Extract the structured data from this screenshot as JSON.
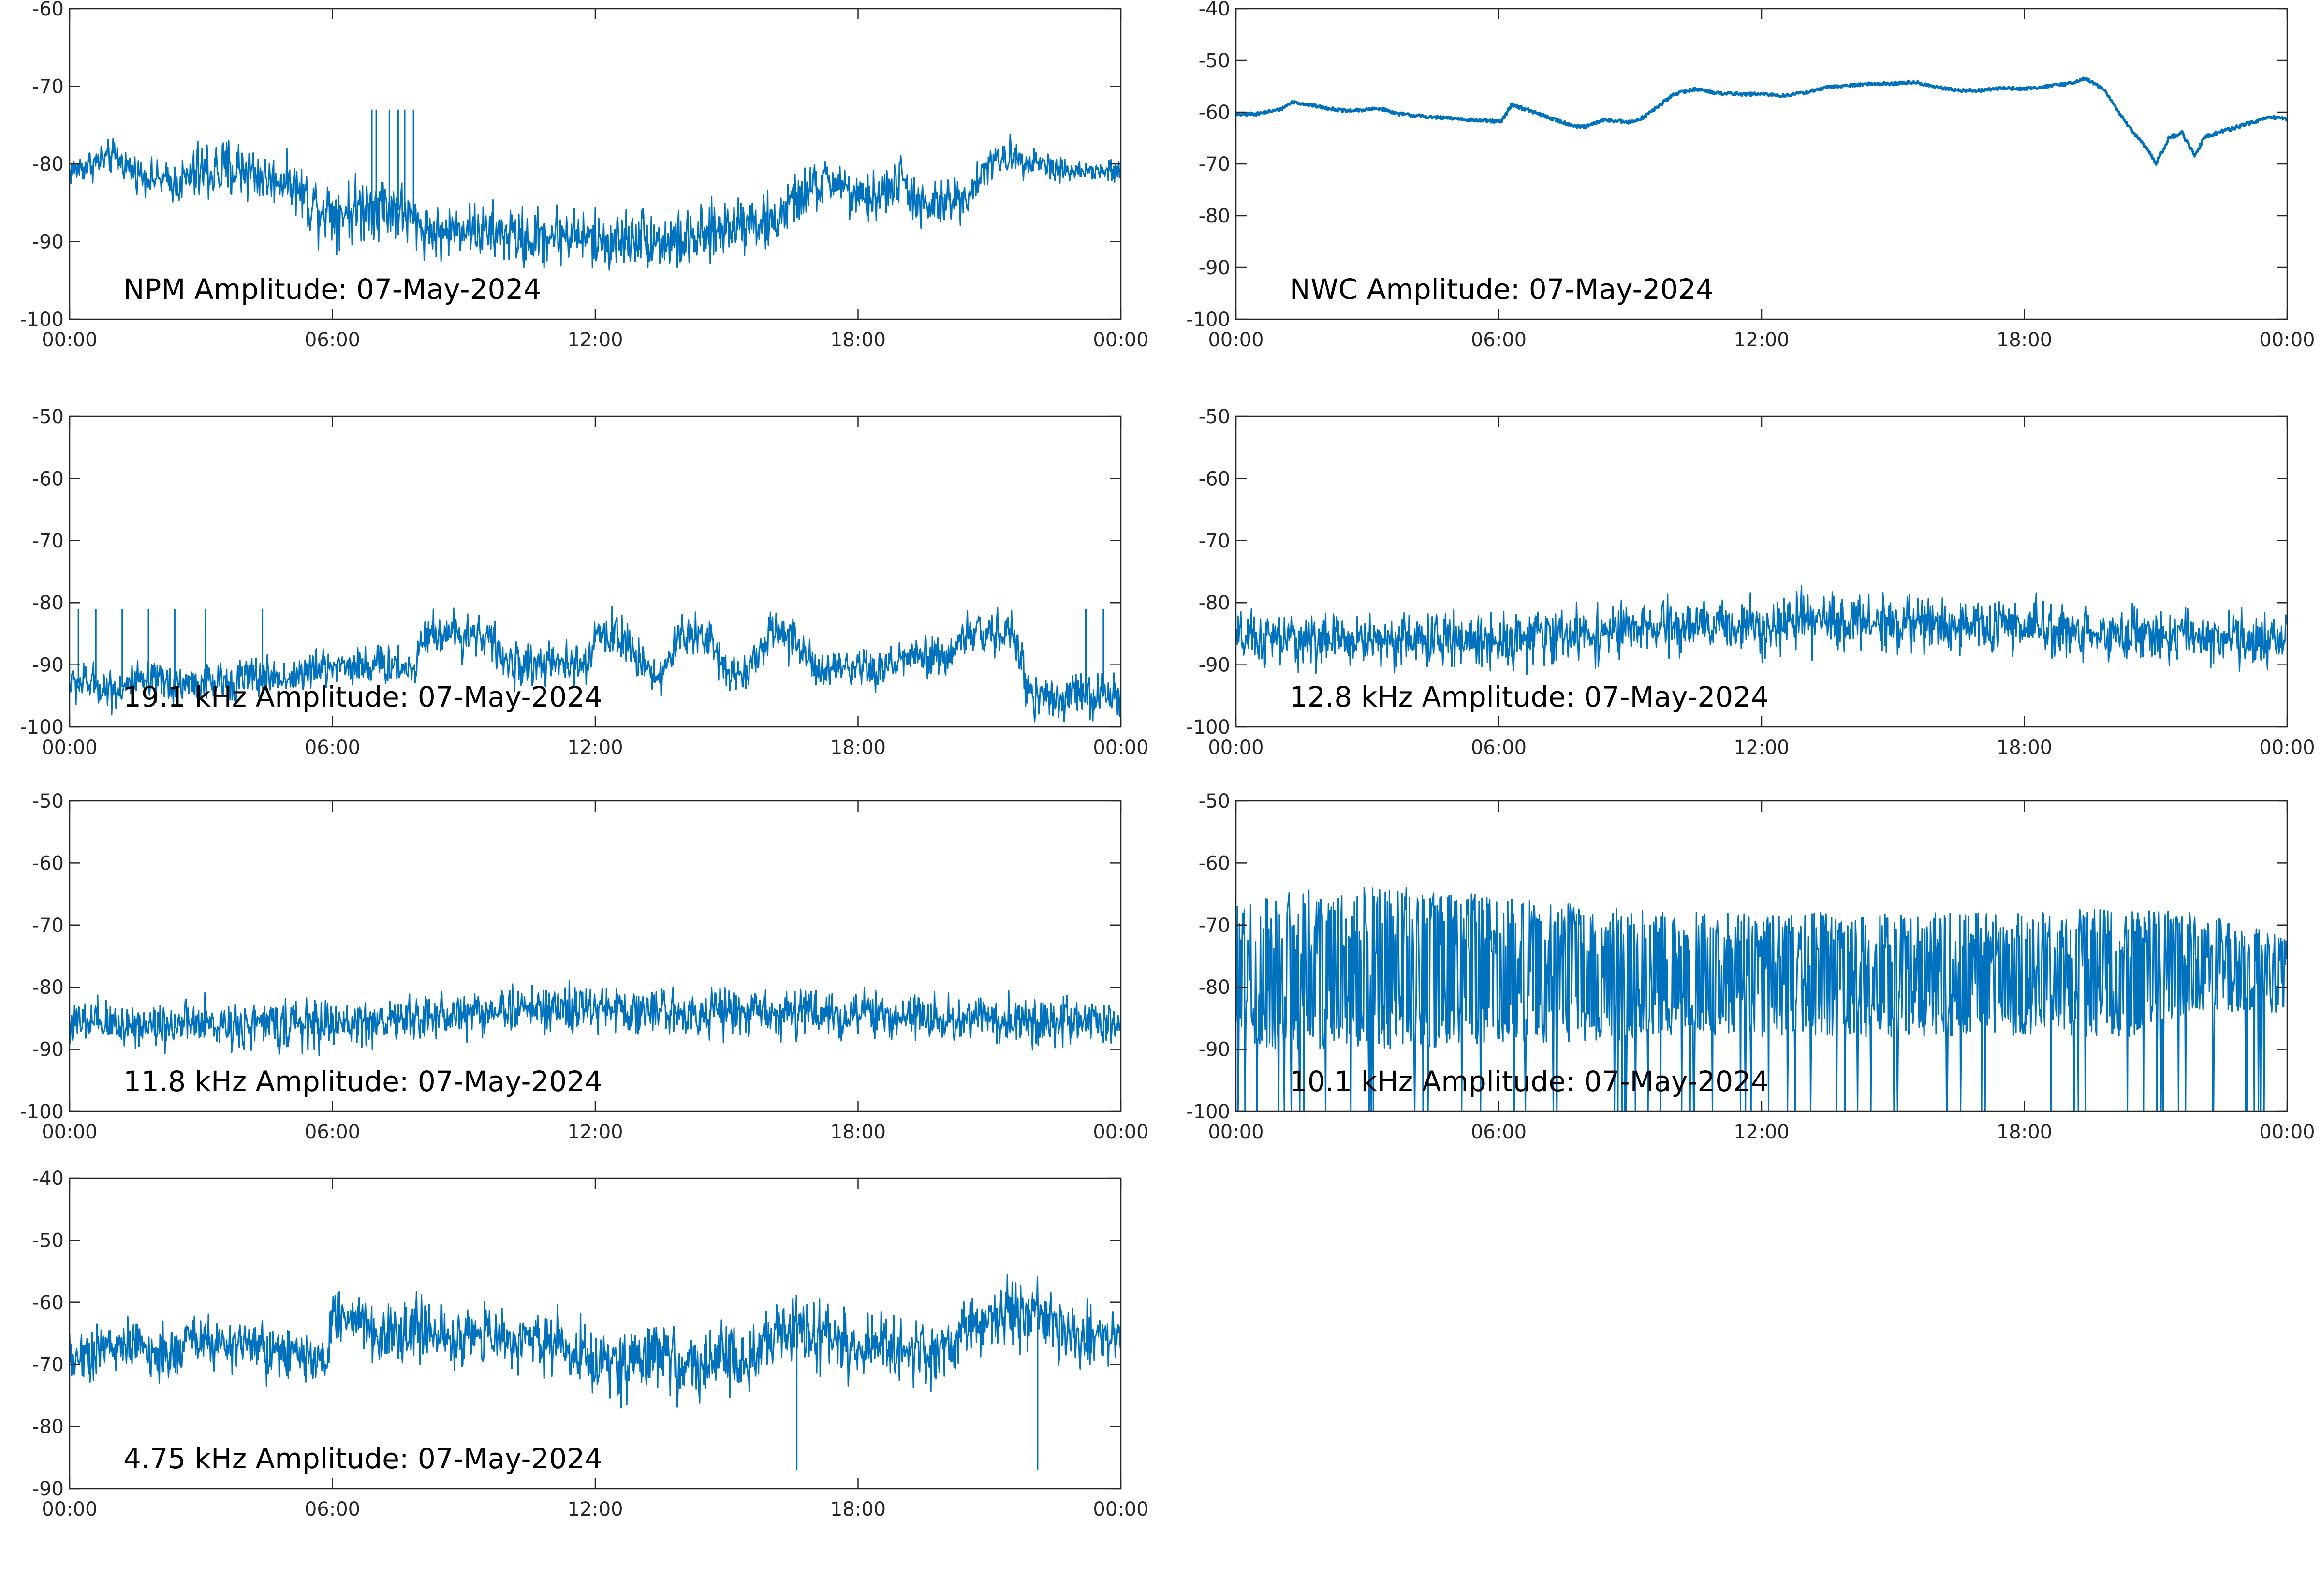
{
  "figure": {
    "line_color": "#0072BD",
    "axis_color": "#262626",
    "background": "#ffffff"
  },
  "chart_data": [
    {
      "id": "npm",
      "type": "line",
      "title": "NPM Amplitude: 07-May-2024",
      "xlabel": "",
      "ylabel": "",
      "x_ticks": [
        "00:00",
        "06:00",
        "12:00",
        "18:00",
        "00:00"
      ],
      "ylim": [
        -100,
        -60
      ],
      "y_ticks": [
        -100,
        -90,
        -80,
        -70,
        -60
      ],
      "grid": false,
      "series": [
        {
          "x_hours": [
            0,
            0.5,
            1,
            1.5,
            2,
            2.5,
            3,
            3.5,
            4,
            4.5,
            5,
            5.5,
            6,
            6.5,
            7,
            7.5,
            8,
            8.5,
            9,
            9.5,
            10,
            10.5,
            11,
            11.5,
            12,
            12.5,
            13,
            13.5,
            14,
            14.5,
            15,
            15.5,
            16,
            16.5,
            17,
            17.5,
            18,
            18.5,
            19,
            19.5,
            20,
            20.5,
            21,
            21.5,
            22,
            22.5,
            23,
            23.5,
            24
          ],
          "center": [
            -81,
            -80,
            -79,
            -81,
            -82,
            -82.5,
            -81,
            -81,
            -80.5,
            -82,
            -82,
            -85,
            -86,
            -86,
            -85,
            -86,
            -88,
            -89,
            -88,
            -89,
            -89,
            -90,
            -89,
            -89,
            -90,
            -90,
            -89,
            -90,
            -90,
            -89.5,
            -88,
            -87,
            -88,
            -85,
            -83,
            -82,
            -85,
            -84,
            -82,
            -86,
            -85,
            -84,
            -80,
            -79,
            -79.5,
            -80.5,
            -81,
            -81,
            -81
          ],
          "spread": [
            1.8,
            2,
            2,
            2,
            2,
            2.5,
            4,
            4,
            4,
            3,
            2.5,
            4,
            4,
            4,
            4,
            4,
            3,
            3,
            3,
            3.5,
            3.5,
            3.5,
            3.5,
            3.5,
            3.5,
            3.5,
            3.5,
            3.5,
            3.5,
            3.5,
            3.5,
            3.5,
            3.5,
            3,
            3,
            3,
            3,
            3,
            3,
            3,
            3,
            2.5,
            2,
            2,
            2,
            1.5,
            1.5,
            1.5,
            1.5
          ]
        }
      ],
      "bursts": [
        {
          "x": 7.0,
          "top": -73
        },
        {
          "x": 7.3,
          "top": -73
        },
        {
          "x": 7.5,
          "top": -73
        },
        {
          "x": 7.65,
          "top": -73
        },
        {
          "x": 7.85,
          "top": -73
        },
        {
          "x": 6.9,
          "top": -73
        }
      ]
    },
    {
      "id": "nwc",
      "type": "line",
      "title": "NWC Amplitude: 07-May-2024",
      "xlabel": "",
      "ylabel": "",
      "x_ticks": [
        "00:00",
        "06:00",
        "12:00",
        "18:00",
        "00:00"
      ],
      "ylim": [
        -100,
        -40
      ],
      "y_ticks": [
        -100,
        -90,
        -80,
        -70,
        -60,
        -50,
        -40
      ],
      "grid": false,
      "series": [
        {
          "x_hours": [
            0,
            0.5,
            1,
            1.3,
            1.8,
            2.5,
            3,
            3.3,
            3.7,
            4.5,
            5,
            5.5,
            6,
            6.05,
            6.3,
            6.8,
            7.3,
            7.8,
            8,
            8.3,
            8.5,
            9,
            9.3,
            9.7,
            10,
            10.5,
            11,
            11.5,
            12,
            12.5,
            13,
            13.5,
            14,
            14.5,
            15,
            15.5,
            16,
            16.5,
            17,
            17.5,
            18,
            18.5,
            19,
            19.4,
            19.8,
            20,
            20.4,
            20.8,
            21,
            21.3,
            21.6,
            21.9,
            22.1,
            22.4,
            22.8,
            23.2,
            23.6,
            24
          ],
          "center": [
            -60.5,
            -60.3,
            -59.5,
            -58,
            -58.8,
            -59.8,
            -59.5,
            -59.3,
            -60.3,
            -61,
            -61.2,
            -61.6,
            -61.8,
            -61.9,
            -58.5,
            -60,
            -61.5,
            -62.8,
            -62.8,
            -61.8,
            -61.5,
            -62,
            -61,
            -58.5,
            -56.5,
            -55.5,
            -56.3,
            -56.5,
            -56.5,
            -56.8,
            -56.2,
            -55.2,
            -54.8,
            -54.5,
            -54.5,
            -54.2,
            -55.2,
            -55.8,
            -55.8,
            -55.3,
            -55.5,
            -55,
            -54.5,
            -53.5,
            -55.5,
            -58,
            -63,
            -67,
            -70,
            -65,
            -64,
            -68.5,
            -65,
            -64,
            -63,
            -62,
            -61,
            -61.3
          ],
          "spread": [
            0.6,
            0.6,
            0.6,
            0.6,
            0.6,
            0.6,
            0.6,
            0.6,
            0.6,
            0.6,
            0.6,
            0.6,
            0.6,
            0.6,
            0.7,
            0.7,
            0.7,
            0.7,
            0.7,
            0.7,
            0.7,
            0.7,
            0.7,
            0.7,
            0.6,
            0.6,
            0.6,
            0.6,
            0.6,
            0.6,
            0.6,
            0.6,
            0.6,
            0.6,
            0.6,
            0.6,
            0.6,
            0.6,
            0.6,
            0.6,
            0.6,
            0.6,
            0.6,
            0.6,
            0.6,
            0.6,
            0.6,
            0.6,
            0.8,
            0.8,
            0.8,
            0.8,
            0.8,
            0.8,
            0.8,
            0.6,
            0.6,
            0.6
          ]
        }
      ],
      "bursts": []
    },
    {
      "id": "f191",
      "type": "line",
      "title": "19.1 kHz Amplitude: 07-May-2024",
      "xlabel": "",
      "ylabel": "",
      "x_ticks": [
        "00:00",
        "06:00",
        "12:00",
        "18:00",
        "00:00"
      ],
      "ylim": [
        -100,
        -50
      ],
      "y_ticks": [
        -100,
        -90,
        -80,
        -70,
        -60,
        -50
      ],
      "grid": false,
      "series": [
        {
          "x_hours": [
            0,
            0.5,
            1,
            1.5,
            2,
            2.5,
            3,
            3.5,
            4,
            4.5,
            5,
            5.5,
            6,
            6.5,
            7,
            7.5,
            7.9,
            8,
            8.5,
            9,
            9.5,
            10,
            10.5,
            11,
            11.5,
            11.9,
            12,
            12.5,
            13,
            13.5,
            14,
            14.5,
            15,
            15.5,
            16,
            16.5,
            17,
            17.5,
            18,
            18.5,
            19,
            19.5,
            20,
            20.5,
            21,
            21.5,
            22,
            22.5,
            23,
            23.5,
            24
          ],
          "center": [
            -93,
            -93,
            -94,
            -93,
            -93,
            -93,
            -93,
            -93,
            -92,
            -92,
            -92,
            -91,
            -90,
            -90,
            -90,
            -90,
            -91,
            -85,
            -85,
            -85,
            -85,
            -90,
            -90,
            -90,
            -90,
            -90,
            -85,
            -85,
            -89,
            -92,
            -85,
            -85,
            -91,
            -91,
            -85,
            -85,
            -91,
            -91,
            -91,
            -91,
            -89,
            -89,
            -89,
            -85,
            -85,
            -85,
            -95,
            -95,
            -95,
            -95,
            -95
          ],
          "spread": [
            3,
            3,
            3,
            3,
            3,
            3,
            3,
            3,
            3,
            3,
            3,
            3,
            3,
            3,
            3,
            3,
            3,
            3.5,
            3.5,
            3.5,
            3.5,
            3,
            3,
            3,
            3,
            3,
            3.5,
            3.5,
            3,
            3,
            3.5,
            3.5,
            3,
            3,
            3.5,
            3.5,
            3,
            3,
            3,
            3,
            3,
            3,
            3,
            3.5,
            3.5,
            3.5,
            3.5,
            3.5,
            3.5,
            3.5,
            3.5
          ]
        }
      ],
      "bursts": [
        {
          "x": 0.2,
          "top": -81
        },
        {
          "x": 0.6,
          "top": -81
        },
        {
          "x": 1.2,
          "top": -81
        },
        {
          "x": 1.8,
          "top": -81
        },
        {
          "x": 2.4,
          "top": -81
        },
        {
          "x": 3.1,
          "top": -81
        },
        {
          "x": 4.4,
          "top": -81
        },
        {
          "x": 23.2,
          "top": -81
        },
        {
          "x": 23.6,
          "top": -81
        }
      ]
    },
    {
      "id": "f128",
      "type": "line",
      "title": "12.8 kHz Amplitude: 07-May-2024",
      "xlabel": "",
      "ylabel": "",
      "x_ticks": [
        "00:00",
        "06:00",
        "12:00",
        "18:00",
        "00:00"
      ],
      "ylim": [
        -100,
        -50
      ],
      "y_ticks": [
        -100,
        -90,
        -80,
        -70,
        -60,
        -50
      ],
      "grid": false,
      "series": [
        {
          "x_hours": [
            0,
            2,
            4,
            6,
            8,
            10,
            12,
            14,
            16,
            18,
            20,
            22,
            24
          ],
          "center": [
            -86,
            -86,
            -86,
            -86,
            -85,
            -84,
            -83.5,
            -83,
            -83.5,
            -84,
            -85,
            -85.5,
            -86
          ],
          "spread": [
            4,
            4,
            4,
            4,
            4,
            4,
            4,
            4,
            4,
            4,
            4,
            4,
            4
          ]
        }
      ],
      "bursts": []
    },
    {
      "id": "f118",
      "type": "line",
      "title": "11.8 kHz Amplitude: 07-May-2024",
      "xlabel": "",
      "ylabel": "",
      "x_ticks": [
        "00:00",
        "06:00",
        "12:00",
        "18:00",
        "00:00"
      ],
      "ylim": [
        -100,
        -50
      ],
      "y_ticks": [
        -100,
        -90,
        -80,
        -70,
        -60,
        -50
      ],
      "grid": false,
      "series": [
        {
          "x_hours": [
            0,
            2,
            4,
            6,
            8,
            10,
            12,
            14,
            16,
            18,
            20,
            22,
            24
          ],
          "center": [
            -86,
            -86,
            -86,
            -86,
            -85,
            -83.5,
            -83.5,
            -84,
            -84,
            -84.5,
            -85,
            -85.5,
            -86
          ],
          "spread": [
            3.5,
            3.5,
            3.5,
            3.5,
            3.5,
            3.5,
            3.5,
            3.5,
            3.5,
            3.5,
            3.5,
            3.5,
            3.5
          ]
        }
      ],
      "bursts": []
    },
    {
      "id": "f101",
      "type": "line",
      "title": "10.1 kHz Amplitude: 07-May-2024",
      "xlabel": "",
      "ylabel": "",
      "x_ticks": [
        "00:00",
        "06:00",
        "12:00",
        "18:00",
        "00:00"
      ],
      "ylim": [
        -100,
        -50
      ],
      "y_ticks": [
        -100,
        -90,
        -80,
        -70,
        -60,
        -50
      ],
      "grid": false,
      "series": [
        {
          "x_hours": [
            0,
            2,
            4,
            6,
            8,
            10,
            12,
            14,
            16,
            18,
            20,
            22,
            24
          ],
          "center": [
            -78,
            -77,
            -77,
            -77,
            -78,
            -78,
            -78,
            -78,
            -78,
            -78,
            -78,
            -76,
            -78
          ],
          "spread": [
            12,
            13,
            13,
            12,
            11,
            10,
            10,
            10,
            10,
            10,
            11,
            8,
            6
          ]
        }
      ],
      "bursts": []
    },
    {
      "id": "f475",
      "type": "line",
      "title": "4.75 kHz Amplitude: 07-May-2024",
      "xlabel": "",
      "ylabel": "",
      "x_ticks": [
        "00:00",
        "06:00",
        "12:00",
        "18:00",
        "00:00"
      ],
      "ylim": [
        -90,
        -40
      ],
      "y_ticks": [
        -90,
        -80,
        -70,
        -60,
        -50,
        -40
      ],
      "grid": false,
      "series": [
        {
          "x_hours": [
            0,
            0.5,
            1,
            1.5,
            2,
            2.5,
            2.7,
            3,
            3.5,
            4,
            4.5,
            5,
            5.5,
            5.9,
            6,
            6.5,
            7,
            7.5,
            8,
            8.5,
            9,
            9.5,
            10,
            10.5,
            11,
            11.5,
            12,
            12.5,
            13,
            13.5,
            14,
            14.5,
            15,
            15.5,
            16,
            16.5,
            17,
            17.5,
            18,
            18.5,
            19,
            19.5,
            20,
            20.5,
            21,
            21.5,
            22,
            22.5,
            23,
            23.5,
            24
          ],
          "center": [
            -69,
            -68,
            -67,
            -67,
            -68,
            -69,
            -64,
            -66,
            -67,
            -67,
            -68,
            -69,
            -69,
            -70,
            -62,
            -62,
            -65,
            -66,
            -64,
            -66,
            -66,
            -65,
            -66,
            -66,
            -66,
            -67,
            -70,
            -70,
            -69,
            -68,
            -70,
            -71,
            -69,
            -70,
            -66,
            -64,
            -65,
            -65,
            -67,
            -66,
            -68,
            -69,
            -68,
            -65,
            -63,
            -62,
            -62,
            -64,
            -66,
            -65,
            -66
          ],
          "spread": [
            4,
            4,
            4,
            4,
            4,
            4,
            4,
            4,
            4,
            4,
            4,
            4,
            4,
            4,
            4,
            4,
            4.5,
            4.5,
            4.5,
            4.5,
            4.5,
            4.5,
            4.5,
            4.5,
            4.5,
            4.5,
            5,
            5,
            5,
            5,
            5,
            5,
            5,
            5,
            5,
            5,
            5,
            5,
            5,
            5,
            5,
            5,
            5,
            5,
            5,
            5,
            5,
            5,
            5,
            5,
            5
          ]
        }
      ],
      "bursts": [
        {
          "x": 16.6,
          "top": -87,
          "down": true
        },
        {
          "x": 22.1,
          "top": -87,
          "down": true
        }
      ]
    }
  ]
}
